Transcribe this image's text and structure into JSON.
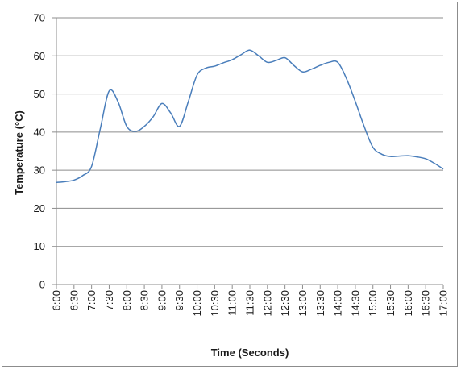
{
  "chart_data": {
    "type": "line",
    "xlabel": "Time (Seconds)",
    "ylabel": "Temperature (°C)",
    "ylim": [
      0,
      70
    ],
    "yticks": [
      0,
      10,
      20,
      30,
      40,
      50,
      60,
      70
    ],
    "categories": [
      "6:00",
      "6:30",
      "7:00",
      "7:30",
      "8:00",
      "8:30",
      "9:00",
      "9:30",
      "10:00",
      "10:30",
      "11:00",
      "11:30",
      "12:00",
      "12:30",
      "13:00",
      "13:30",
      "14:00",
      "14:30",
      "15:00",
      "15:30",
      "16:00",
      "16:30",
      "17:00"
    ],
    "grid": "horizontal",
    "legend": "none",
    "series": [
      {
        "color": "#4a7ebb",
        "x": [
          6.0,
          6.25,
          6.5,
          6.75,
          7.0,
          7.25,
          7.5,
          7.75,
          8.0,
          8.25,
          8.5,
          8.75,
          9.0,
          9.25,
          9.5,
          9.75,
          10.0,
          10.25,
          10.5,
          10.75,
          11.0,
          11.25,
          11.5,
          11.75,
          12.0,
          12.25,
          12.5,
          12.75,
          13.0,
          13.25,
          13.5,
          13.75,
          14.0,
          14.25,
          14.5,
          14.75,
          15.0,
          15.25,
          15.5,
          15.75,
          16.0,
          16.25,
          16.5,
          16.75,
          17.0
        ],
        "values": [
          26.8,
          27.0,
          27.4,
          28.6,
          31.0,
          41.0,
          50.8,
          48.0,
          41.5,
          40.2,
          41.5,
          44.0,
          47.5,
          45.0,
          41.5,
          48.0,
          55.0,
          56.8,
          57.3,
          58.2,
          59.0,
          60.3,
          61.5,
          60.0,
          58.3,
          58.8,
          59.5,
          57.5,
          55.8,
          56.5,
          57.5,
          58.3,
          58.3,
          54.0,
          48.0,
          41.5,
          36.0,
          34.2,
          33.6,
          33.7,
          33.8,
          33.5,
          33.0,
          31.8,
          30.3
        ]
      }
    ]
  }
}
